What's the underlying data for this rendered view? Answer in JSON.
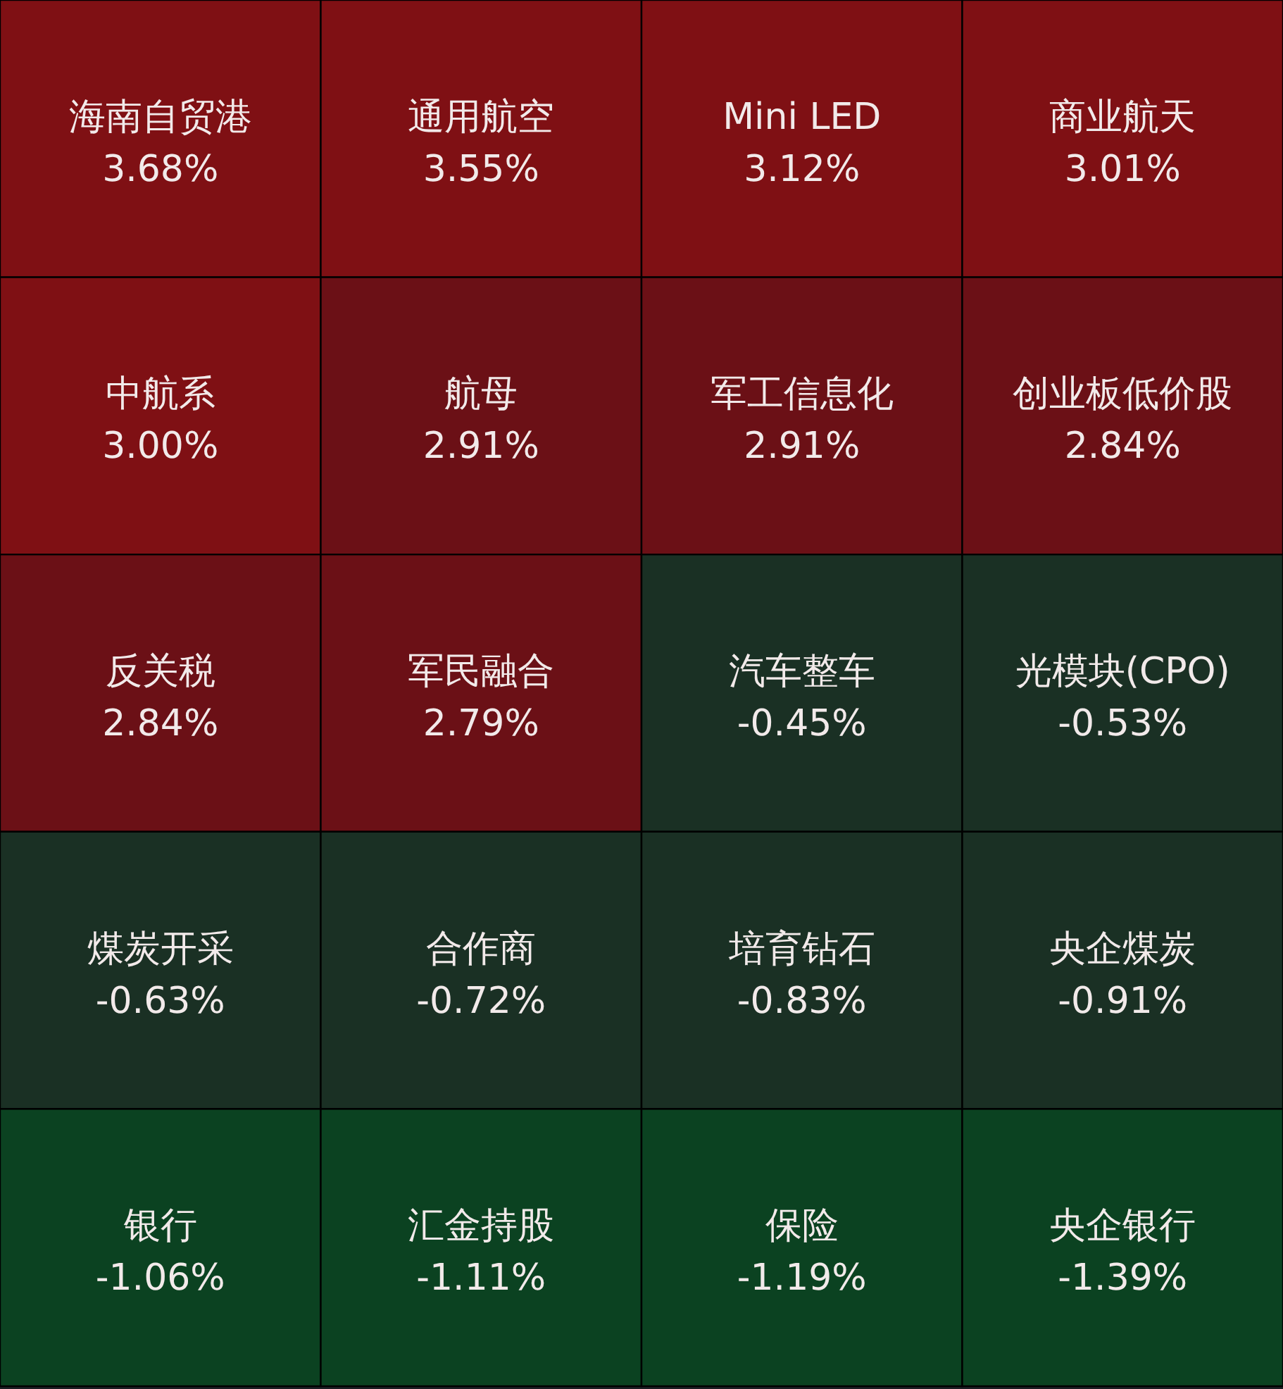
{
  "chart_data": {
    "type": "other",
    "categories": [
      "海南自贸港",
      "通用航空",
      "Mini LED",
      "商业航天",
      "中航系",
      "航母",
      "军工信息化",
      "创业板低价股",
      "反关税",
      "军民融合",
      "汽车整车",
      "光模块(CPO)",
      "煤炭开采",
      "合作商",
      "培育钻石",
      "央企煤炭",
      "银行",
      "汇金持股",
      "保险",
      "央企银行"
    ],
    "values": [
      3.68,
      3.55,
      3.12,
      3.01,
      3.0,
      2.91,
      2.91,
      2.84,
      2.84,
      2.79,
      -0.45,
      -0.53,
      -0.63,
      -0.72,
      -0.83,
      -0.91,
      -1.06,
      -1.11,
      -1.19,
      -1.39
    ],
    "value_labels": [
      "3.68%",
      "3.55%",
      "3.12%",
      "3.01%",
      "3.00%",
      "2.91%",
      "2.91%",
      "2.84%",
      "2.84%",
      "2.79%",
      "-0.45%",
      "-0.53%",
      "-0.63%",
      "-0.72%",
      "-0.83%",
      "-0.91%",
      "-1.06%",
      "-1.11%",
      "-1.19%",
      "-1.39%"
    ],
    "colors": [
      "#7f1014",
      "#7f1014",
      "#7f1014",
      "#7f1014",
      "#7f1014",
      "#6b1016",
      "#6b1016",
      "#6b1016",
      "#6b1016",
      "#6b1016",
      "#1a3024",
      "#1a3024",
      "#1a3024",
      "#1a3024",
      "#1a3024",
      "#1a3024",
      "#0b4221",
      "#0b4221",
      "#0b4221",
      "#0b4221"
    ]
  }
}
